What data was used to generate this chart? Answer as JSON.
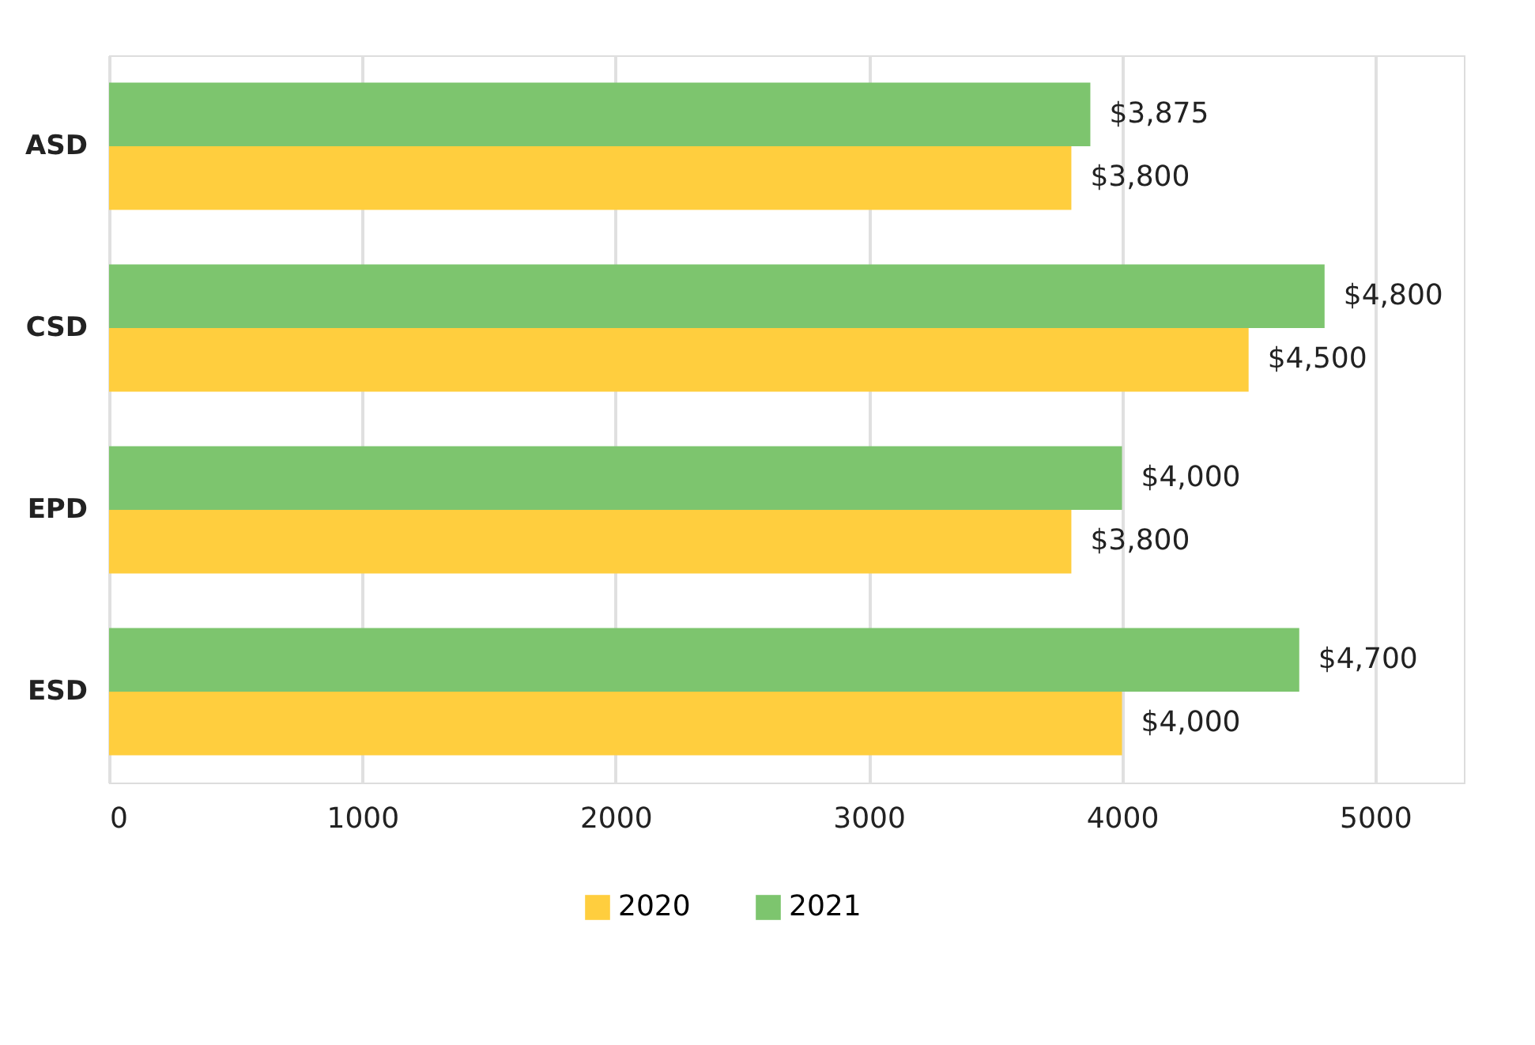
{
  "chart_data": {
    "type": "bar",
    "orientation": "horizontal",
    "categories": [
      "ASD",
      "CSD",
      "EPD",
      "ESD"
    ],
    "series": [
      {
        "name": "2020",
        "color": "#ffce3e",
        "values": [
          3800,
          4500,
          3800,
          4000
        ],
        "value_labels": [
          "$3,800",
          "$4,500",
          "$3,800",
          "$4,000"
        ]
      },
      {
        "name": "2021",
        "color": "#7dc56e",
        "values": [
          3875,
          4800,
          4000,
          4700
        ],
        "value_labels": [
          "$3,875",
          "$4,800",
          "$4,000",
          "$4,700"
        ]
      }
    ],
    "xlim": [
      0,
      5350
    ],
    "xticks": [
      0,
      1000,
      2000,
      3000,
      4000,
      5000
    ],
    "grid": "x",
    "legend": "bottom"
  }
}
